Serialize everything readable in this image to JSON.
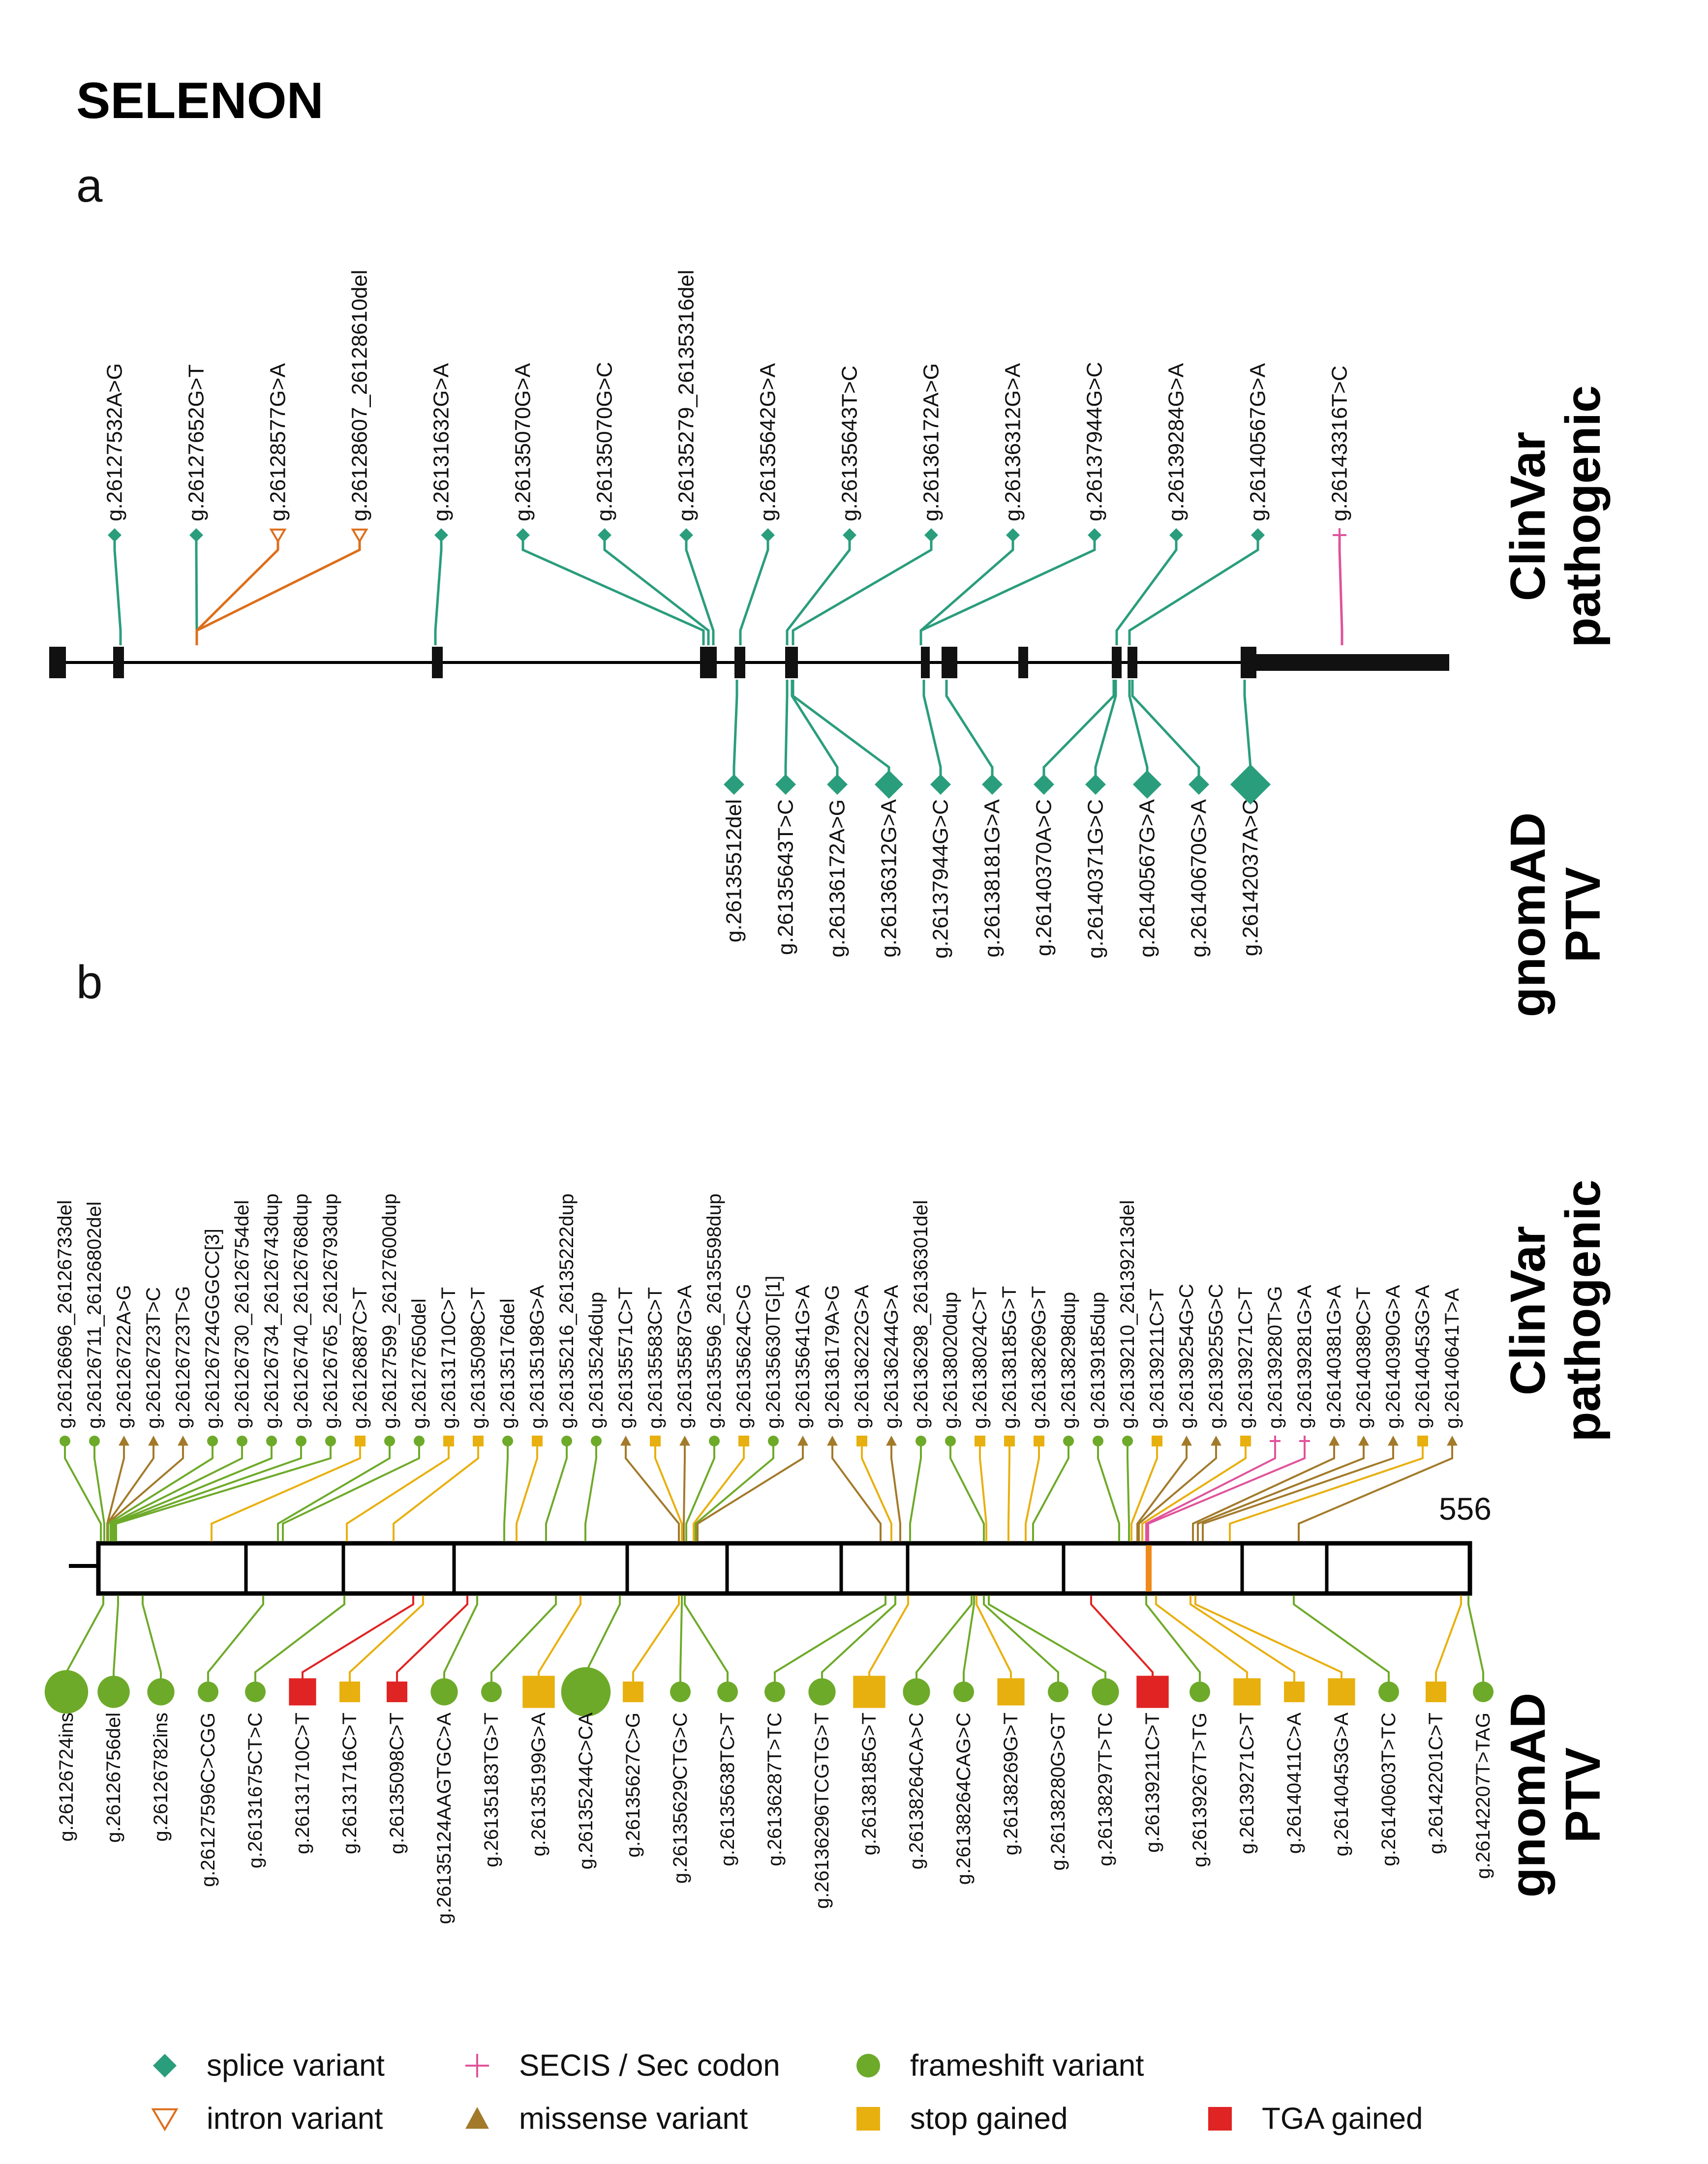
{
  "title": "SELENON",
  "panel_a": {
    "label": "a",
    "clinvar_track_title": [
      "ClinVar",
      "pathogenic"
    ],
    "gnomad_track_title": [
      "gnomAD",
      "PTV"
    ],
    "clinvar": [
      {
        "label": "g.26127532A>G",
        "type": "splice"
      },
      {
        "label": "g.26127652G>T",
        "type": "splice"
      },
      {
        "label": "g.26128577G>A",
        "type": "intron"
      },
      {
        "label": "g.26128607_26128610del",
        "type": "intron"
      },
      {
        "label": "g.26131632G>A",
        "type": "splice"
      },
      {
        "label": "g.26135070G>A",
        "type": "splice"
      },
      {
        "label": "g.26135070G>C",
        "type": "splice"
      },
      {
        "label": "g.26135279_26135316del",
        "type": "splice"
      },
      {
        "label": "g.26135642G>A",
        "type": "splice"
      },
      {
        "label": "g.26135643T>C",
        "type": "splice"
      },
      {
        "label": "g.26136172A>G",
        "type": "splice"
      },
      {
        "label": "g.26136312G>A",
        "type": "splice"
      },
      {
        "label": "g.26137944G>C",
        "type": "splice"
      },
      {
        "label": "g.26139284G>A",
        "type": "splice"
      },
      {
        "label": "g.26140567G>A",
        "type": "splice"
      },
      {
        "label": "g.26143316T>C",
        "type": "secis"
      }
    ],
    "gnomad": [
      {
        "label": "g.26135512del",
        "type": "splice",
        "count": 1
      },
      {
        "label": "g.26135643T>C",
        "type": "splice",
        "count": 1
      },
      {
        "label": "g.26136172A>G",
        "type": "splice",
        "count": 1
      },
      {
        "label": "g.26136312G>A",
        "type": "splice",
        "count": 3
      },
      {
        "label": "g.26137944G>C",
        "type": "splice",
        "count": 1
      },
      {
        "label": "g.26138181G>A",
        "type": "splice",
        "count": 1
      },
      {
        "label": "g.26140370A>C",
        "type": "splice",
        "count": 1
      },
      {
        "label": "g.26140371G>C",
        "type": "splice",
        "count": 1
      },
      {
        "label": "g.26140567G>A",
        "type": "splice",
        "count": 3
      },
      {
        "label": "g.26140670G>A",
        "type": "splice",
        "count": 1
      },
      {
        "label": "g.26142037A>C",
        "type": "splice",
        "count": 8
      }
    ]
  },
  "panel_b": {
    "label": "b",
    "protein_length_label": "556",
    "clinvar_track_title": [
      "ClinVar",
      "pathogenic"
    ],
    "gnomad_track_title": [
      "gnomAD",
      "PTV"
    ],
    "clinvar": [
      {
        "label": "g.26126696_26126733del",
        "type": "frameshift"
      },
      {
        "label": "g.26126711_26126802del",
        "type": "frameshift"
      },
      {
        "label": "g.26126722A>G",
        "type": "missense"
      },
      {
        "label": "g.26126723T>C",
        "type": "missense"
      },
      {
        "label": "g.26126723T>G",
        "type": "missense"
      },
      {
        "label": "g.26126724GGGCC[3]",
        "type": "frameshift"
      },
      {
        "label": "g.26126730_26126754del",
        "type": "frameshift"
      },
      {
        "label": "g.26126734_26126743dup",
        "type": "frameshift"
      },
      {
        "label": "g.26126740_26126768dup",
        "type": "frameshift"
      },
      {
        "label": "g.26126765_26126793dup",
        "type": "frameshift"
      },
      {
        "label": "g.26126887C>T",
        "type": "stop"
      },
      {
        "label": "g.26127599_26127600dup",
        "type": "frameshift"
      },
      {
        "label": "g.26127650del",
        "type": "frameshift"
      },
      {
        "label": "g.26131710C>T",
        "type": "stop"
      },
      {
        "label": "g.26135098C>T",
        "type": "stop"
      },
      {
        "label": "g.26135176del",
        "type": "frameshift"
      },
      {
        "label": "g.26135198G>A",
        "type": "stop"
      },
      {
        "label": "g.26135216_26135222dup",
        "type": "frameshift"
      },
      {
        "label": "g.26135246dup",
        "type": "frameshift"
      },
      {
        "label": "g.26135571C>T",
        "type": "missense"
      },
      {
        "label": "g.26135583C>T",
        "type": "stop"
      },
      {
        "label": "g.26135587G>A",
        "type": "missense"
      },
      {
        "label": "g.26135596_26135598dup",
        "type": "frameshift"
      },
      {
        "label": "g.26135624C>G",
        "type": "stop"
      },
      {
        "label": "g.26135630TG[1]",
        "type": "frameshift"
      },
      {
        "label": "g.26135641G>A",
        "type": "missense"
      },
      {
        "label": "g.26136179A>G",
        "type": "missense"
      },
      {
        "label": "g.26136222G>A",
        "type": "stop"
      },
      {
        "label": "g.26136244G>A",
        "type": "missense"
      },
      {
        "label": "g.26136298_26136301del",
        "type": "frameshift"
      },
      {
        "label": "g.26138020dup",
        "type": "frameshift"
      },
      {
        "label": "g.26138024C>T",
        "type": "stop"
      },
      {
        "label": "g.26138185G>T",
        "type": "stop"
      },
      {
        "label": "g.26138269G>T",
        "type": "stop"
      },
      {
        "label": "g.26138298dup",
        "type": "frameshift"
      },
      {
        "label": "g.26139185dup",
        "type": "frameshift"
      },
      {
        "label": "g.26139210_26139213del",
        "type": "frameshift"
      },
      {
        "label": "g.26139211C>T",
        "type": "stop"
      },
      {
        "label": "g.26139254G>C",
        "type": "missense"
      },
      {
        "label": "g.26139255G>C",
        "type": "missense"
      },
      {
        "label": "g.26139271C>T",
        "type": "stop"
      },
      {
        "label": "g.26139280T>G",
        "type": "secis"
      },
      {
        "label": "g.26139281G>A",
        "type": "secis"
      },
      {
        "label": "g.26140381G>A",
        "type": "missense"
      },
      {
        "label": "g.26140389C>T",
        "type": "missense"
      },
      {
        "label": "g.26140390G>A",
        "type": "missense"
      },
      {
        "label": "g.26140453G>A",
        "type": "stop"
      },
      {
        "label": "g.26140641T>A",
        "type": "missense"
      }
    ],
    "gnomad": [
      {
        "label": "g.26126724ins",
        "type": "frameshift",
        "count": 6
      },
      {
        "label": "g.26126756del",
        "type": "frameshift",
        "count": 3
      },
      {
        "label": "g.26126782ins",
        "type": "frameshift",
        "count": 2
      },
      {
        "label": "g.26127596C>CGG",
        "type": "frameshift",
        "count": 1
      },
      {
        "label": "g.26131675CT>C",
        "type": "frameshift",
        "count": 1
      },
      {
        "label": "g.26131710C>T",
        "type": "tga",
        "count": 2
      },
      {
        "label": "g.26131716C>T",
        "type": "stop",
        "count": 1
      },
      {
        "label": "g.26135098C>T",
        "type": "tga",
        "count": 1
      },
      {
        "label": "g.26135124AAGTGC>A",
        "type": "frameshift",
        "count": 2
      },
      {
        "label": "g.26135183TG>T",
        "type": "frameshift",
        "count": 1
      },
      {
        "label": "g.26135199G>A",
        "type": "stop",
        "count": 3
      },
      {
        "label": "g.26135244C>CA",
        "type": "frameshift",
        "count": 8
      },
      {
        "label": "g.26135627C>G",
        "type": "stop",
        "count": 1
      },
      {
        "label": "g.26135629CTG>C",
        "type": "frameshift",
        "count": 1
      },
      {
        "label": "g.26135638TC>T",
        "type": "frameshift",
        "count": 1
      },
      {
        "label": "g.26136287T>TC",
        "type": "frameshift",
        "count": 1
      },
      {
        "label": "g.26136296TCGTG>T",
        "type": "frameshift",
        "count": 2
      },
      {
        "label": "g.26138185G>T",
        "type": "stop",
        "count": 3
      },
      {
        "label": "g.26138264CA>C",
        "type": "frameshift",
        "count": 2
      },
      {
        "label": "g.26138264CAG>C",
        "type": "frameshift",
        "count": 1
      },
      {
        "label": "g.26138269G>T",
        "type": "stop",
        "count": 2
      },
      {
        "label": "g.26138280G>GT",
        "type": "frameshift",
        "count": 1
      },
      {
        "label": "g.26138297T>TC",
        "type": "frameshift",
        "count": 2
      },
      {
        "label": "g.26139211C>T",
        "type": "tga",
        "count": 3
      },
      {
        "label": "g.26139267T>TG",
        "type": "frameshift",
        "count": 1
      },
      {
        "label": "g.26139271C>T",
        "type": "stop",
        "count": 2
      },
      {
        "label": "g.26140411C>A",
        "type": "stop",
        "count": 1
      },
      {
        "label": "g.26140453G>A",
        "type": "stop",
        "count": 2
      },
      {
        "label": "g.26140603T>TC",
        "type": "frameshift",
        "count": 1
      },
      {
        "label": "g.26142201C>T",
        "type": "stop",
        "count": 1
      },
      {
        "label": "g.26142207T>TAG",
        "type": "frameshift",
        "count": 1
      }
    ]
  },
  "legend": [
    {
      "key": "splice",
      "label": "splice variant"
    },
    {
      "key": "secis",
      "label": "SECIS / Sec codon"
    },
    {
      "key": "frameshift",
      "label": "frameshift variant"
    },
    {
      "key": "intron",
      "label": "intron variant"
    },
    {
      "key": "missense",
      "label": "missense variant"
    },
    {
      "key": "stop",
      "label": "stop gained"
    },
    {
      "key": "tga",
      "label": "TGA gained"
    }
  ],
  "colors": {
    "splice": "#2a9d7c",
    "intron": "#dd6e1b",
    "secis": "#e0539b",
    "frameshift": "#6eaa2a",
    "missense": "#a27a2a",
    "stop": "#e8b00f",
    "tga": "#e02424",
    "sec_box_marker": "#ef8a1a",
    "structure": "#000000"
  }
}
